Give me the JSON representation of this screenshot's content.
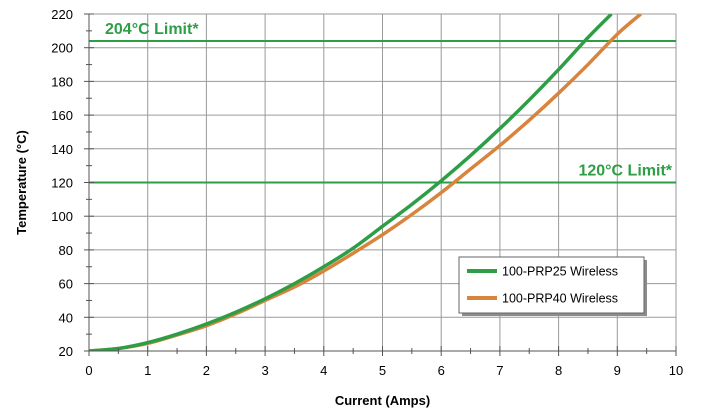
{
  "chart_data": {
    "type": "line",
    "xlabel": "Current (Amps)",
    "ylabel": "Temperature (°C)",
    "xlim": [
      0,
      10
    ],
    "ylim": [
      20,
      220
    ],
    "xticks": [
      0,
      1,
      2,
      3,
      4,
      5,
      6,
      7,
      8,
      9,
      10
    ],
    "yticks": [
      20,
      40,
      60,
      80,
      100,
      120,
      140,
      160,
      180,
      200,
      220
    ],
    "grid": true,
    "legend_position": "bottom-right",
    "series": [
      {
        "name": "100-PRP25 Wireless",
        "color": "#2e9e46",
        "points": [
          [
            0,
            20
          ],
          [
            0.5,
            21.5
          ],
          [
            1,
            25
          ],
          [
            1.5,
            30
          ],
          [
            2,
            36
          ],
          [
            2.5,
            43
          ],
          [
            3,
            51
          ],
          [
            3.5,
            60
          ],
          [
            4,
            70
          ],
          [
            4.5,
            81
          ],
          [
            5,
            94
          ],
          [
            5.5,
            107
          ],
          [
            6,
            121
          ],
          [
            6.5,
            136
          ],
          [
            7,
            152
          ],
          [
            7.5,
            169
          ],
          [
            8,
            187
          ],
          [
            8.5,
            206
          ],
          [
            8.9,
            220
          ]
        ]
      },
      {
        "name": "100-PRP40 Wireless",
        "color": "#d8843c",
        "points": [
          [
            0,
            20
          ],
          [
            0.5,
            21.5
          ],
          [
            1,
            24.5
          ],
          [
            1.5,
            29.5
          ],
          [
            2,
            35
          ],
          [
            2.5,
            42
          ],
          [
            3,
            50
          ],
          [
            3.5,
            58
          ],
          [
            4,
            67.5
          ],
          [
            4.5,
            78
          ],
          [
            5,
            89
          ],
          [
            5.5,
            101
          ],
          [
            6,
            114
          ],
          [
            6.5,
            128
          ],
          [
            7,
            142
          ],
          [
            7.5,
            157
          ],
          [
            8,
            173
          ],
          [
            8.5,
            190
          ],
          [
            9,
            208
          ],
          [
            9.4,
            220
          ]
        ]
      }
    ],
    "reference_lines": [
      {
        "y": 204,
        "label": "204°C Limit*",
        "color": "#2e9e46",
        "label_position": "left"
      },
      {
        "y": 120,
        "label": "120°C Limit*",
        "color": "#2e9e46",
        "label_position": "right"
      }
    ]
  }
}
